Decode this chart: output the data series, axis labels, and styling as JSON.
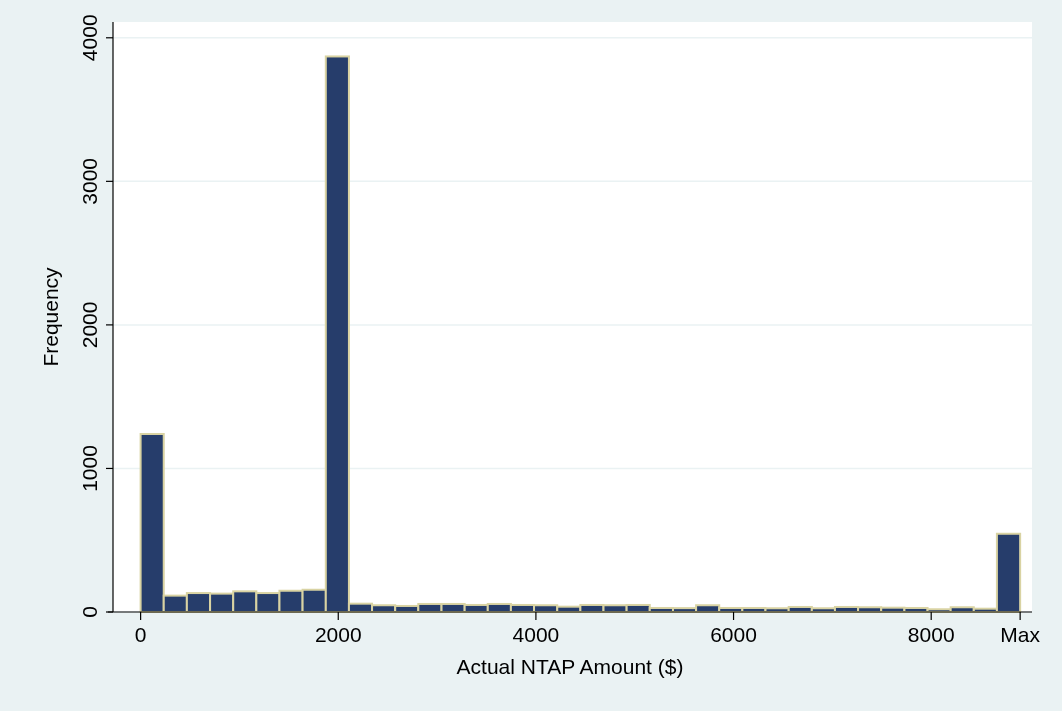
{
  "chart_data": {
    "type": "histogram",
    "xlabel": "Actual NTAP Amount ($)",
    "ylabel": "Frequency",
    "bins": [
      0,
      234,
      468,
      703,
      937,
      1171,
      1405,
      1639,
      1874,
      2108,
      2342,
      2576,
      2810,
      3045,
      3279,
      3513,
      3747,
      3981,
      4216,
      4450,
      4684,
      4918,
      5152,
      5387,
      5621,
      5855,
      6089,
      6323,
      6558,
      6792,
      7026,
      7260,
      7494,
      7729,
      7963,
      8197,
      8431,
      8665,
      8900
    ],
    "values": [
      1240,
      114,
      132,
      128,
      144,
      132,
      148,
      155,
      3870,
      58,
      47,
      42,
      56,
      56,
      49,
      56,
      49,
      47,
      37,
      49,
      47,
      49,
      28,
      27,
      47,
      28,
      28,
      26,
      35,
      26,
      35,
      33,
      30,
      28,
      19,
      33,
      23,
      545
    ],
    "color": "#263d6b",
    "xlim": [
      -330,
      9020
    ],
    "xticks": [
      0,
      2000,
      4000,
      6000,
      8000,
      {
        "value": 8900,
        "label": "Max"
      }
    ],
    "ylim": [
      0,
      4110
    ],
    "yticks": [
      0,
      1000,
      2000,
      3000,
      4000
    ],
    "grid": "y"
  }
}
